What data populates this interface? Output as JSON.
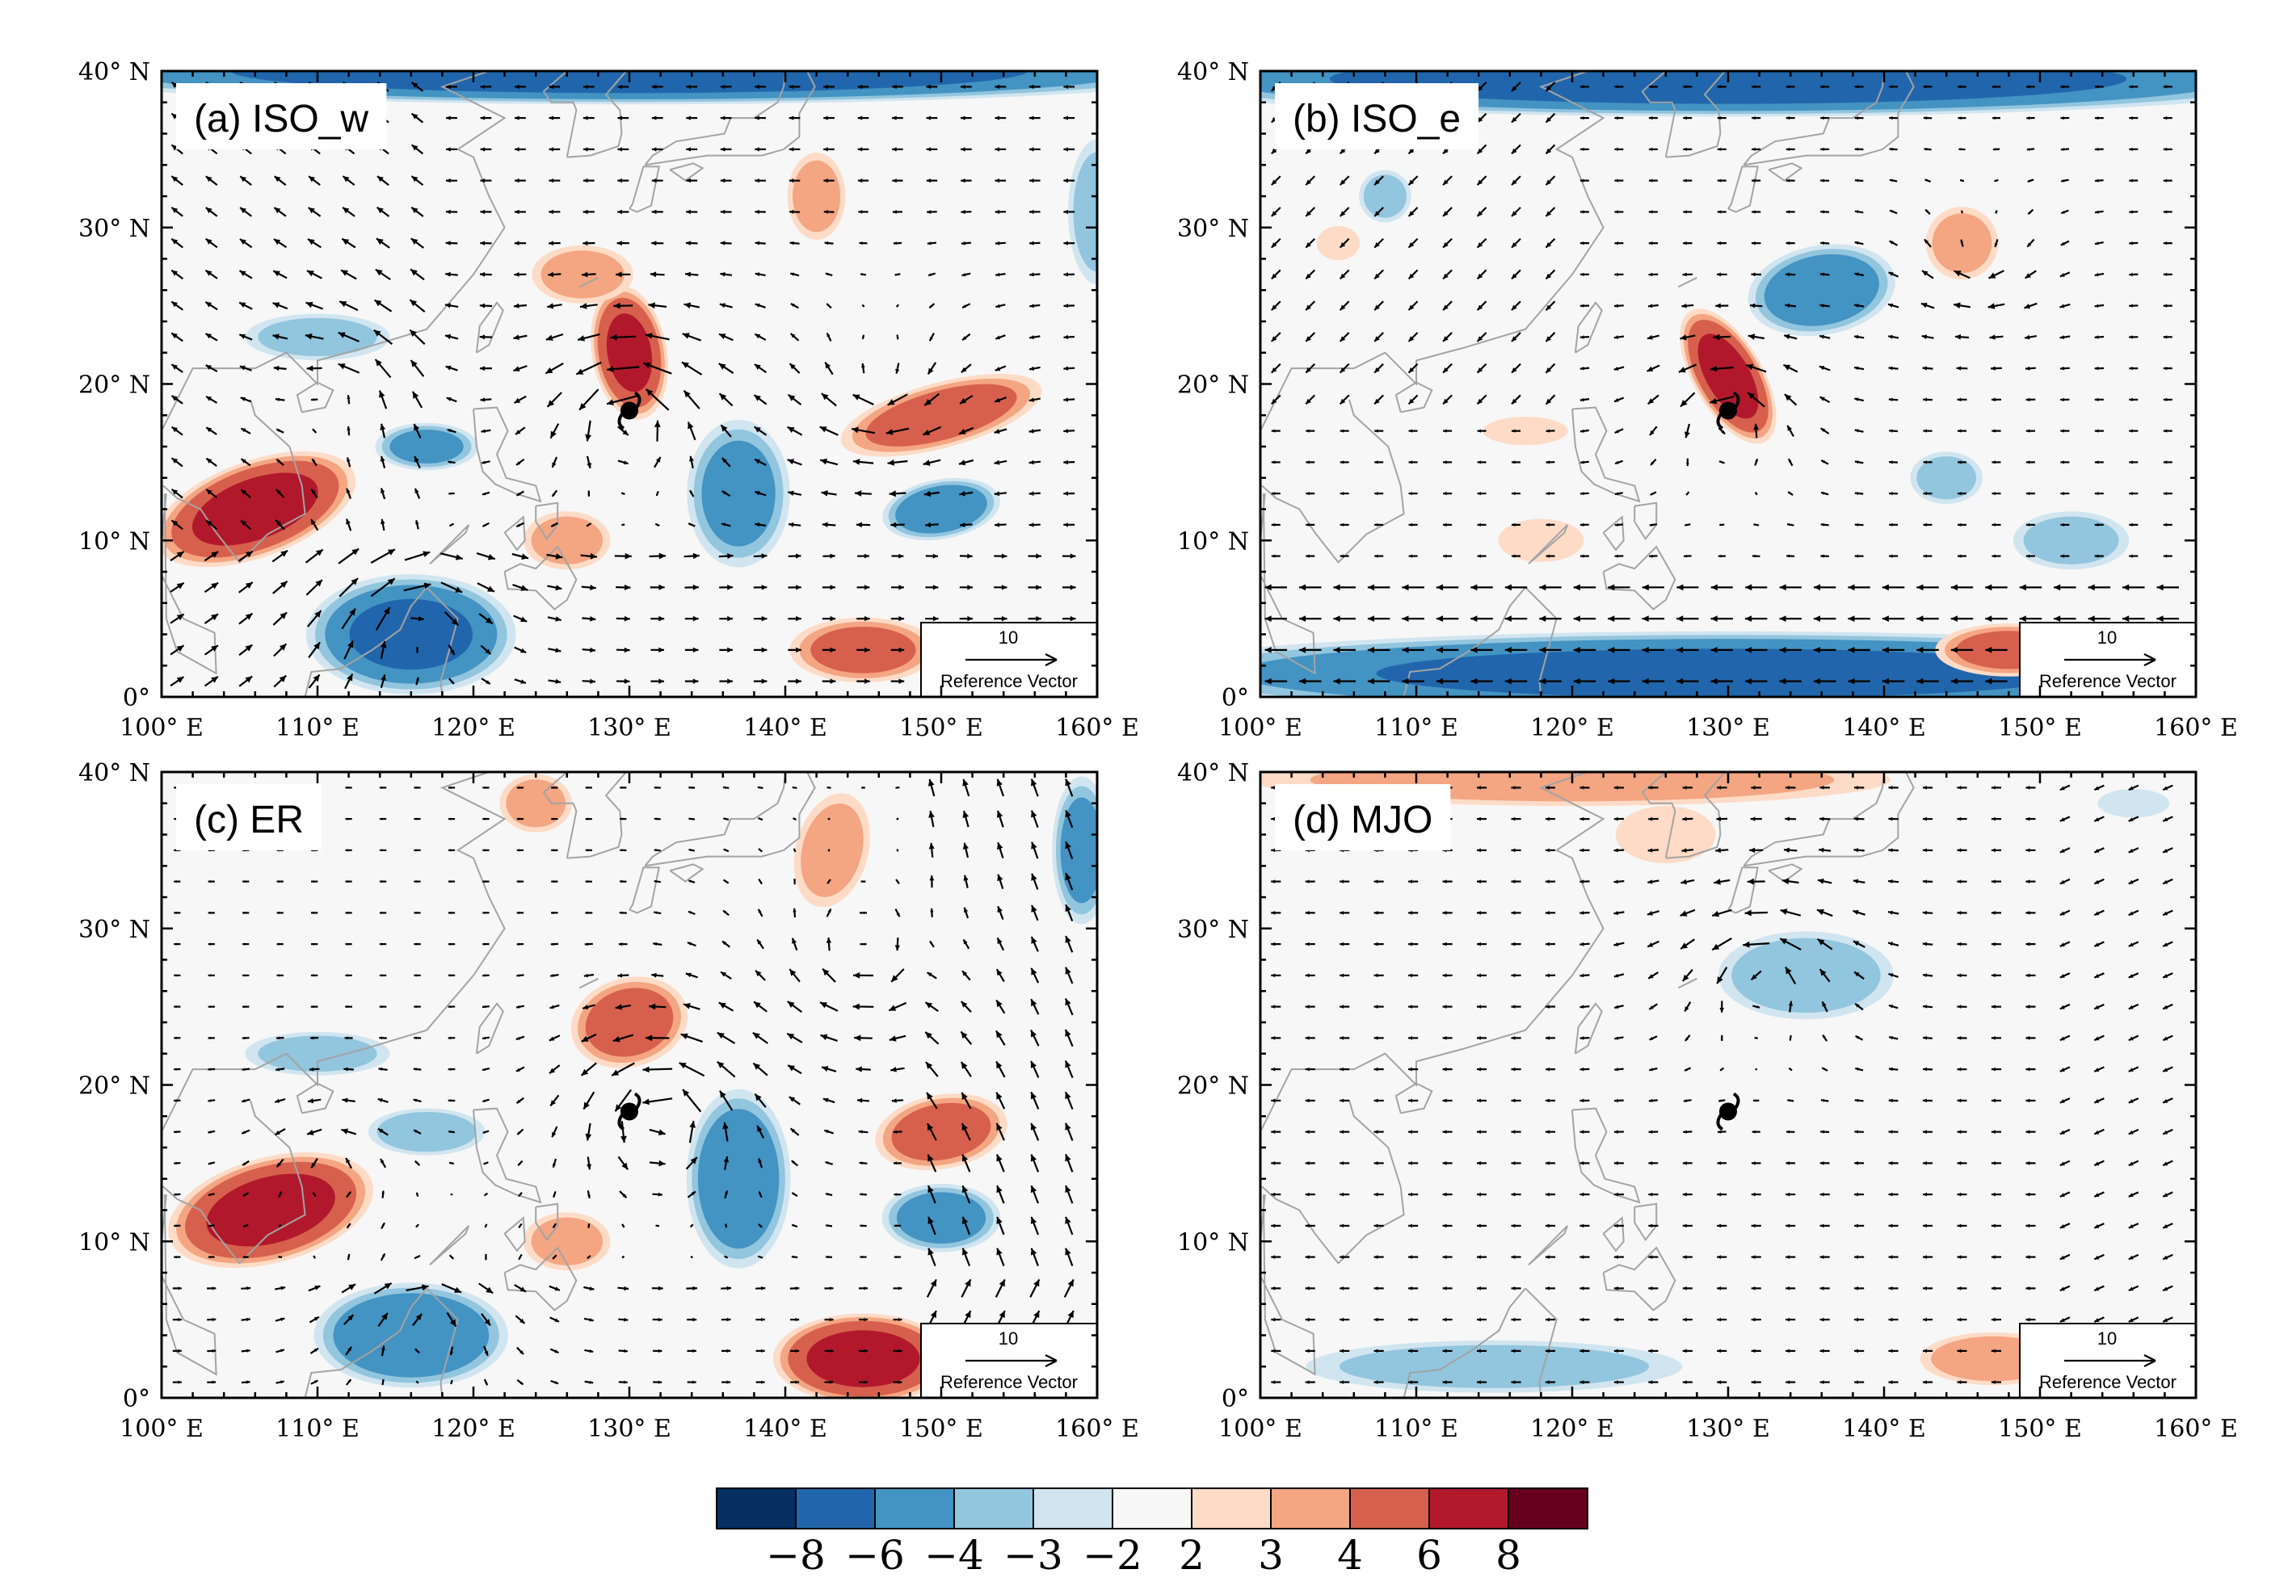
{
  "figure": {
    "x_ticks": [
      "100° E",
      "110° E",
      "120° E",
      "130° E",
      "140° E",
      "150° E",
      "160° E"
    ],
    "y_ticks": [
      "0°",
      "10° N",
      "20° N",
      "30° N",
      "40° N"
    ],
    "reference_vector": {
      "value": "10",
      "label": "Reference Vector"
    },
    "typhoon_marker": {
      "lon": 130,
      "lat": 18.3
    }
  },
  "panels": [
    {
      "id": "a",
      "title": "(a) ISO_w",
      "anomalies": [
        {
          "lon": 106,
          "lat": 12,
          "rx": 7,
          "ry": 3.2,
          "rot": -20,
          "v": 6.5
        },
        {
          "lon": 116,
          "lat": 4,
          "rx": 7,
          "ry": 4,
          "rot": 0,
          "v": -6
        },
        {
          "lon": 130,
          "lat": 22,
          "rx": 2.5,
          "ry": 4.5,
          "rot": -10,
          "v": 6
        },
        {
          "lon": 127,
          "lat": 27,
          "rx": 3.5,
          "ry": 2,
          "rot": 0,
          "v": 3
        },
        {
          "lon": 150,
          "lat": 18,
          "rx": 7,
          "ry": 2.2,
          "rot": -15,
          "v": 4.5
        },
        {
          "lon": 150,
          "lat": 12,
          "rx": 4,
          "ry": 2,
          "rot": -10,
          "v": -5
        },
        {
          "lon": 137,
          "lat": 13,
          "rx": 3.5,
          "ry": 5,
          "rot": 0,
          "v": -4
        },
        {
          "lon": 117,
          "lat": 16,
          "rx": 3.5,
          "ry": 1.6,
          "rot": 0,
          "v": -4
        },
        {
          "lon": 110,
          "lat": 23,
          "rx": 5,
          "ry": 1.6,
          "rot": 0,
          "v": -3
        },
        {
          "lon": 145,
          "lat": 3,
          "rx": 5,
          "ry": 2.2,
          "rot": 0,
          "v": 4
        },
        {
          "lon": 126,
          "lat": 10,
          "rx": 3,
          "ry": 2,
          "rot": 0,
          "v": 3
        },
        {
          "lon": 142,
          "lat": 32,
          "rx": 2,
          "ry": 3,
          "rot": 0,
          "v": 3
        },
        {
          "lon": 160,
          "lat": 31,
          "rx": 2,
          "ry": 5,
          "rot": 0,
          "v": -3
        },
        {
          "lon": 130,
          "lat": 40,
          "rx": 40,
          "ry": 2.2,
          "rot": 0,
          "v": -7
        }
      ]
    },
    {
      "id": "b",
      "title": "(b) ISO_e",
      "anomalies": [
        {
          "lon": 130,
          "lat": 20.5,
          "rx": 2.3,
          "ry": 5,
          "rot": -30,
          "v": 6.5
        },
        {
          "lon": 136,
          "lat": 26,
          "rx": 5,
          "ry": 3,
          "rot": -10,
          "v": -5
        },
        {
          "lon": 130,
          "lat": 1.5,
          "rx": 40,
          "ry": 2.8,
          "rot": 0,
          "v": -6
        },
        {
          "lon": 130,
          "lat": 39.5,
          "rx": 40,
          "ry": 2.5,
          "rot": 0,
          "v": -7
        },
        {
          "lon": 148,
          "lat": 3,
          "rx": 5,
          "ry": 1.8,
          "rot": 0,
          "v": 4
        },
        {
          "lon": 152,
          "lat": 10,
          "rx": 4,
          "ry": 2,
          "rot": 0,
          "v": -3
        },
        {
          "lon": 144,
          "lat": 14,
          "rx": 2.5,
          "ry": 1.8,
          "rot": 0,
          "v": -3
        },
        {
          "lon": 145,
          "lat": 29,
          "rx": 2.5,
          "ry": 2.5,
          "rot": 0,
          "v": 3
        },
        {
          "lon": 108,
          "lat": 32,
          "rx": 1.8,
          "ry": 1.8,
          "rot": 0,
          "v": -3
        },
        {
          "lon": 118,
          "lat": 10,
          "rx": 3,
          "ry": 1.5,
          "rot": 0,
          "v": 2.5
        },
        {
          "lon": 117,
          "lat": 17,
          "rx": 3,
          "ry": 1,
          "rot": 0,
          "v": 2.2
        },
        {
          "lon": 105,
          "lat": 29,
          "rx": 1.5,
          "ry": 1.2,
          "rot": 0,
          "v": 2.5
        }
      ]
    },
    {
      "id": "c",
      "title": "(c) ER",
      "anomalies": [
        {
          "lon": 107,
          "lat": 12,
          "rx": 7,
          "ry": 3.5,
          "rot": -15,
          "v": 6.5
        },
        {
          "lon": 116,
          "lat": 4,
          "rx": 6.5,
          "ry": 3.5,
          "rot": 0,
          "v": -5.5
        },
        {
          "lon": 145,
          "lat": 2.5,
          "rx": 6,
          "ry": 3,
          "rot": 0,
          "v": 6.5
        },
        {
          "lon": 130,
          "lat": 24,
          "rx": 4,
          "ry": 3,
          "rot": -15,
          "v": 4.5
        },
        {
          "lon": 137,
          "lat": 14,
          "rx": 3.5,
          "ry": 6,
          "rot": 0,
          "v": -5
        },
        {
          "lon": 150,
          "lat": 17,
          "rx": 4.5,
          "ry": 2.5,
          "rot": -10,
          "v": 4.5
        },
        {
          "lon": 150,
          "lat": 11.5,
          "rx": 4,
          "ry": 2.3,
          "rot": 0,
          "v": -4.5
        },
        {
          "lon": 117,
          "lat": 17,
          "rx": 4,
          "ry": 1.6,
          "rot": 0,
          "v": -3.5
        },
        {
          "lon": 110,
          "lat": 22,
          "rx": 5,
          "ry": 1.5,
          "rot": 0,
          "v": -3
        },
        {
          "lon": 126,
          "lat": 10,
          "rx": 3,
          "ry": 2,
          "rot": 0,
          "v": 3
        },
        {
          "lon": 143,
          "lat": 35,
          "rx": 2.5,
          "ry": 4,
          "rot": 15,
          "v": 3
        },
        {
          "lon": 159,
          "lat": 35,
          "rx": 2,
          "ry": 5,
          "rot": 0,
          "v": -4
        },
        {
          "lon": 124,
          "lat": 38,
          "rx": 2.5,
          "ry": 2,
          "rot": 0,
          "v": 3
        }
      ]
    },
    {
      "id": "d",
      "title": "(d) MJO",
      "anomalies": [
        {
          "lon": 135,
          "lat": 27,
          "rx": 6,
          "ry": 3,
          "rot": 0,
          "v": -3.5
        },
        {
          "lon": 115,
          "lat": 2,
          "rx": 13,
          "ry": 1.8,
          "rot": 0,
          "v": -3
        },
        {
          "lon": 147,
          "lat": 2.5,
          "rx": 5,
          "ry": 1.8,
          "rot": 0,
          "v": 3.5
        },
        {
          "lon": 120,
          "lat": 39.5,
          "rx": 22,
          "ry": 1.8,
          "rot": 0,
          "v": 3
        },
        {
          "lon": 156,
          "lat": 38,
          "rx": 2.5,
          "ry": 1,
          "rot": 0,
          "v": -2.5
        },
        {
          "lon": 126,
          "lat": 36,
          "rx": 3.5,
          "ry": 2,
          "rot": 0,
          "v": 2.5
        }
      ]
    }
  ],
  "colorbar": {
    "levels": [
      "−8",
      "−6",
      "−4",
      "−3",
      "−2",
      "2",
      "3",
      "4",
      "6",
      "8"
    ],
    "colors": [
      "#053061",
      "#2166ac",
      "#4393c3",
      "#92c5de",
      "#d1e5f0",
      "#f7f7f7",
      "#fddbc7",
      "#f4a582",
      "#d6604d",
      "#b2182b",
      "#67001f"
    ]
  }
}
